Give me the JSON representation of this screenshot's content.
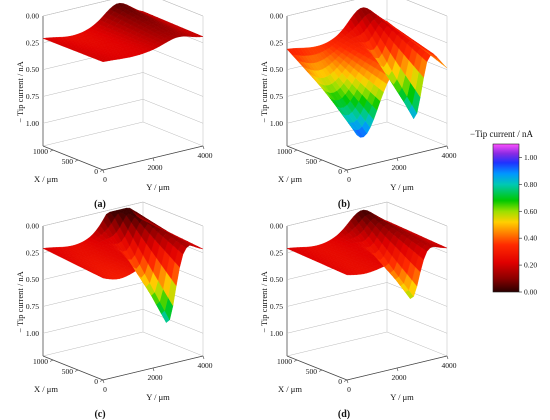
{
  "colorbar": {
    "title": "−Tip current / nA",
    "ticks": [
      "1.00",
      "0.80",
      "0.60",
      "0.40",
      "0.20",
      "0.00"
    ],
    "tick_values": [
      1.0,
      0.8,
      0.6,
      0.4,
      0.2,
      0.0
    ],
    "range": [
      0,
      1.1
    ],
    "stops": [
      {
        "v": 0.0,
        "color": "#2a0000"
      },
      {
        "v": 0.1,
        "color": "#8b0000"
      },
      {
        "v": 0.22,
        "color": "#e00000"
      },
      {
        "v": 0.35,
        "color": "#ff2a00"
      },
      {
        "v": 0.45,
        "color": "#ff8c00"
      },
      {
        "v": 0.52,
        "color": "#ffd000"
      },
      {
        "v": 0.6,
        "color": "#9be000"
      },
      {
        "v": 0.68,
        "color": "#00c800"
      },
      {
        "v": 0.8,
        "color": "#00c8b4"
      },
      {
        "v": 0.88,
        "color": "#0096ff"
      },
      {
        "v": 0.96,
        "color": "#1e32ff"
      },
      {
        "v": 1.03,
        "color": "#8a2be2"
      },
      {
        "v": 1.1,
        "color": "#ff50ff"
      }
    ]
  },
  "chart_data": [
    {
      "type": "surface",
      "panel": "(a)",
      "zlabel": "− Tip current / nA",
      "xlabel": "X / μm",
      "ylabel": "Y / μm",
      "zticks": [
        "0.00",
        "0.25",
        "0.50",
        "0.75",
        "1.00"
      ],
      "xticks": [
        "0",
        "500",
        "1000"
      ],
      "yticks": [
        "0",
        "2000",
        "4000"
      ],
      "zlim": [
        0,
        1.1
      ],
      "xlim": [
        0,
        1200
      ],
      "ylim": [
        0,
        4000
      ],
      "surface": {
        "base": 0.2,
        "peak_y": 3000,
        "peak_depth": 0.25,
        "trough_y": 2600,
        "trough_depth": 0.0,
        "trough_width": 400,
        "front_rise": 0.0
      }
    },
    {
      "type": "surface",
      "panel": "(b)",
      "zlabel": "− Tip current / nA",
      "xlabel": "X / μm",
      "ylabel": "Y / μm",
      "zticks": [
        "0.00",
        "0.25",
        "0.50",
        "0.75",
        "1.00"
      ],
      "xticks": [
        "0",
        "500",
        "1000"
      ],
      "yticks": [
        "0",
        "2000",
        "4000"
      ],
      "zlim": [
        0,
        1.1
      ],
      "xlim": [
        0,
        1200
      ],
      "ylim": [
        0,
        4000
      ],
      "surface": {
        "base": 0.3,
        "peak_y": 3000,
        "peak_depth": 0.35,
        "trough_y": 2700,
        "trough_depth": 0.65,
        "trough_width": 420,
        "front_rise": 0.7
      }
    },
    {
      "type": "surface",
      "panel": "(c)",
      "zlabel": "− Tip current / nA",
      "xlabel": "X / μm",
      "ylabel": "Y / μm",
      "zticks": [
        "0.00",
        "0.25",
        "0.50",
        "0.75",
        "1.00"
      ],
      "xticks": [
        "0",
        "500",
        "1000"
      ],
      "yticks": [
        "0",
        "2000",
        "4000"
      ],
      "zlim": [
        0,
        1.1
      ],
      "xlim": [
        0,
        1200
      ],
      "ylim": [
        0,
        4000
      ],
      "surface": {
        "base": 0.2,
        "peak_y": 3000,
        "peak_depth": 0.45,
        "trough_y": 2600,
        "trough_depth": 0.7,
        "trough_width": 450,
        "front_rise": 0.1
      }
    },
    {
      "type": "surface",
      "panel": "(d)",
      "zlabel": "− Tip current / nA",
      "xlabel": "X / μm",
      "ylabel": "Y / μm",
      "zticks": [
        "0.00",
        "0.25",
        "0.50",
        "0.75",
        "1.00"
      ],
      "xticks": [
        "0",
        "500",
        "1000"
      ],
      "yticks": [
        "0",
        "2000",
        "4000"
      ],
      "zlim": [
        0,
        1.1
      ],
      "xlim": [
        0,
        1200
      ],
      "ylim": [
        0,
        4000
      ],
      "surface": {
        "base": 0.2,
        "peak_y": 3000,
        "peak_depth": 0.3,
        "trough_y": 2600,
        "trough_depth": 0.45,
        "trough_width": 420,
        "front_rise": 0.05
      }
    }
  ]
}
